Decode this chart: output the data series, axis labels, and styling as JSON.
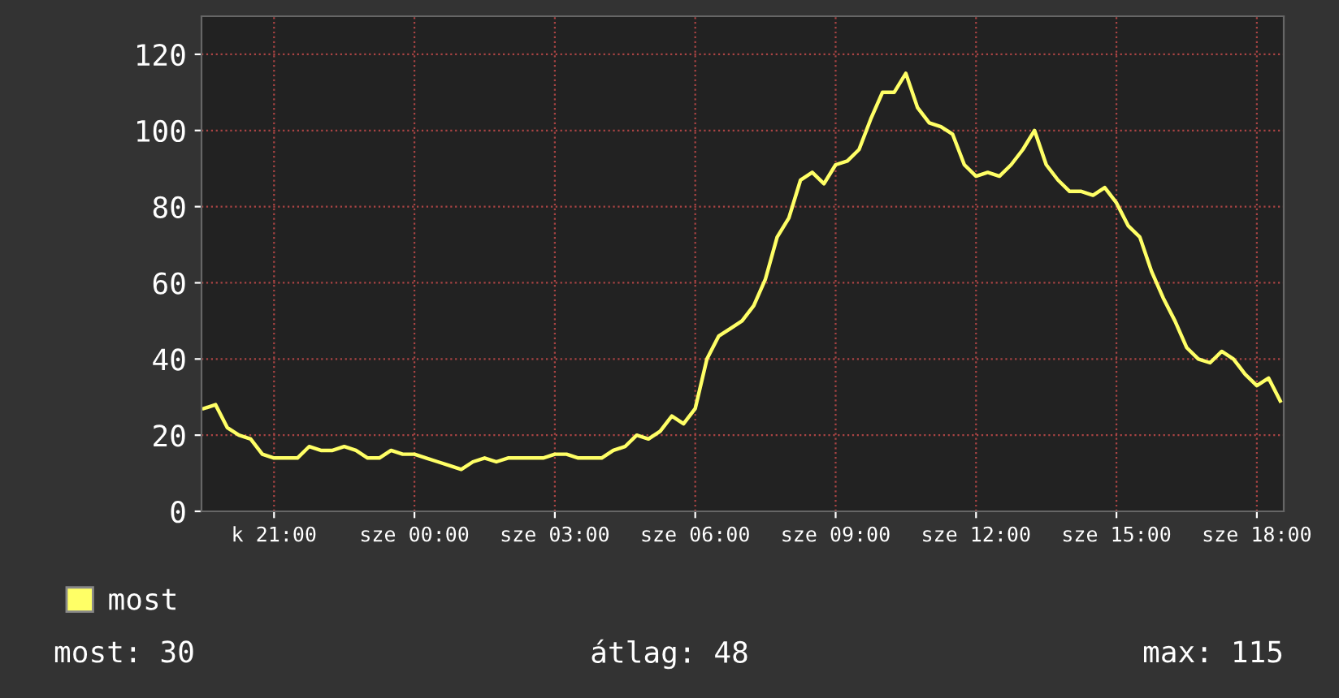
{
  "chart_data": {
    "type": "line",
    "categories": [
      null,
      null,
      null,
      null,
      null,
      null,
      "k 21:00",
      null,
      null,
      null,
      null,
      null,
      null,
      null,
      null,
      null,
      null,
      null,
      "sze 00:00",
      null,
      null,
      null,
      null,
      null,
      null,
      null,
      null,
      null,
      null,
      null,
      "sze 03:00",
      null,
      null,
      null,
      null,
      null,
      null,
      null,
      null,
      null,
      null,
      null,
      "sze 06:00",
      null,
      null,
      null,
      null,
      null,
      null,
      null,
      null,
      null,
      null,
      null,
      "sze 09:00",
      null,
      null,
      null,
      null,
      null,
      null,
      null,
      null,
      null,
      null,
      null,
      "sze 12:00",
      null,
      null,
      null,
      null,
      null,
      null,
      null,
      null,
      null,
      null,
      null,
      "sze 15:00",
      null,
      null,
      null,
      null,
      null,
      null,
      null,
      null,
      null,
      null,
      null,
      "sze 18:00",
      null,
      null
    ],
    "series": [
      {
        "name": "most",
        "color": "#ffff66",
        "values": [
          27,
          28,
          22,
          20,
          19,
          15,
          14,
          14,
          14,
          17,
          16,
          16,
          17,
          16,
          14,
          14,
          16,
          15,
          15,
          14,
          13,
          12,
          11,
          13,
          14,
          13,
          14,
          14,
          14,
          14,
          15,
          15,
          14,
          14,
          14,
          16,
          17,
          20,
          19,
          21,
          25,
          23,
          27,
          40,
          46,
          48,
          50,
          54,
          61,
          72,
          77,
          87,
          89,
          86,
          91,
          92,
          95,
          103,
          110,
          110,
          115,
          106,
          102,
          101,
          99,
          91,
          88,
          89,
          88,
          91,
          95,
          100,
          91,
          87,
          84,
          84,
          83,
          85,
          81,
          75,
          72,
          63,
          56,
          50,
          43,
          40,
          39,
          42,
          40,
          36,
          33,
          35,
          29
        ]
      }
    ],
    "ylim": [
      0,
      130
    ],
    "yticks": [
      0,
      20,
      40,
      60,
      80,
      100,
      120
    ],
    "grid": true,
    "legend": "bottom left",
    "line_style": "solid",
    "annotations": [
      "most: 30",
      "átlag: 48",
      "max: 115"
    ]
  }
}
